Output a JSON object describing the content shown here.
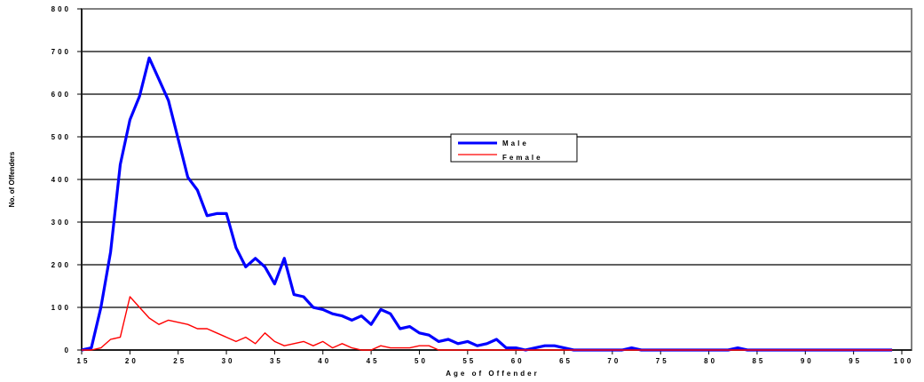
{
  "chart_data": {
    "type": "line",
    "xlabel": "Age of Offender",
    "ylabel": "No. of Offenders",
    "xlim": [
      15,
      100
    ],
    "ylim": [
      0,
      800
    ],
    "xticks": [
      "15",
      "20",
      "25",
      "30",
      "35",
      "40",
      "45",
      "50",
      "55",
      "60",
      "65",
      "70",
      "75",
      "80",
      "85",
      "90",
      "95",
      "100"
    ],
    "yticks": [
      "0",
      "100",
      "200",
      "300",
      "400",
      "500",
      "600",
      "700",
      "800"
    ],
    "grid": true,
    "legend_position": "center-right",
    "series": [
      {
        "name": "Male",
        "color": "#0000ff",
        "x": [
          15,
          16,
          17,
          18,
          19,
          20,
          21,
          22,
          23,
          24,
          25,
          26,
          27,
          28,
          29,
          30,
          31,
          32,
          33,
          34,
          35,
          36,
          37,
          38,
          39,
          40,
          41,
          42,
          43,
          44,
          45,
          46,
          47,
          48,
          49,
          50,
          51,
          52,
          53,
          54,
          55,
          56,
          57,
          58,
          59,
          60,
          61,
          62,
          63,
          64,
          65,
          66,
          67,
          68,
          69,
          70,
          71,
          72,
          73,
          74,
          75,
          76,
          77,
          78,
          79,
          80,
          81,
          82,
          83,
          84,
          85,
          86,
          87,
          88,
          89,
          90,
          91,
          92,
          93,
          94,
          95,
          96,
          97,
          98,
          99
        ],
        "y": [
          0,
          5,
          100,
          230,
          435,
          540,
          595,
          685,
          635,
          585,
          495,
          405,
          375,
          315,
          320,
          320,
          240,
          195,
          215,
          195,
          155,
          215,
          130,
          125,
          100,
          95,
          85,
          80,
          70,
          80,
          60,
          95,
          85,
          50,
          55,
          40,
          35,
          20,
          25,
          15,
          20,
          10,
          15,
          25,
          5,
          5,
          0,
          5,
          10,
          10,
          5,
          0,
          0,
          0,
          0,
          0,
          0,
          5,
          0,
          0,
          0,
          0,
          0,
          0,
          0,
          0,
          0,
          0,
          5,
          0,
          0,
          0,
          0,
          0,
          0,
          0,
          0,
          0,
          0,
          0,
          0,
          0,
          0,
          0,
          0
        ]
      },
      {
        "name": "Female",
        "color": "#ff0000",
        "x": [
          15,
          16,
          17,
          18,
          19,
          20,
          21,
          22,
          23,
          24,
          25,
          26,
          27,
          28,
          29,
          30,
          31,
          32,
          33,
          34,
          35,
          36,
          37,
          38,
          39,
          40,
          41,
          42,
          43,
          44,
          45,
          46,
          47,
          48,
          49,
          50,
          51,
          52,
          53,
          54,
          55,
          56,
          57,
          58,
          59,
          60,
          61,
          62,
          63,
          64,
          65,
          66,
          67,
          68,
          69,
          70,
          71,
          72,
          73,
          74,
          75,
          76,
          77,
          78,
          79,
          80,
          81,
          82,
          83,
          84,
          85,
          86,
          87,
          88,
          89,
          90,
          91,
          92,
          93,
          94,
          95,
          96,
          97,
          98,
          99
        ],
        "y": [
          0,
          0,
          5,
          25,
          30,
          125,
          100,
          75,
          60,
          70,
          65,
          60,
          50,
          50,
          40,
          30,
          20,
          30,
          15,
          40,
          20,
          10,
          15,
          20,
          10,
          20,
          5,
          15,
          5,
          0,
          0,
          10,
          5,
          5,
          5,
          10,
          10,
          0,
          0,
          0,
          0,
          0,
          0,
          0,
          0,
          0,
          0,
          0,
          0,
          0,
          0,
          0,
          0,
          0,
          0,
          0,
          0,
          0,
          0,
          0,
          0,
          0,
          0,
          0,
          0,
          0,
          0,
          0,
          0,
          0,
          0,
          0,
          0,
          0,
          0,
          0,
          0,
          0,
          0,
          0,
          0,
          0,
          0,
          0,
          0
        ]
      }
    ]
  }
}
